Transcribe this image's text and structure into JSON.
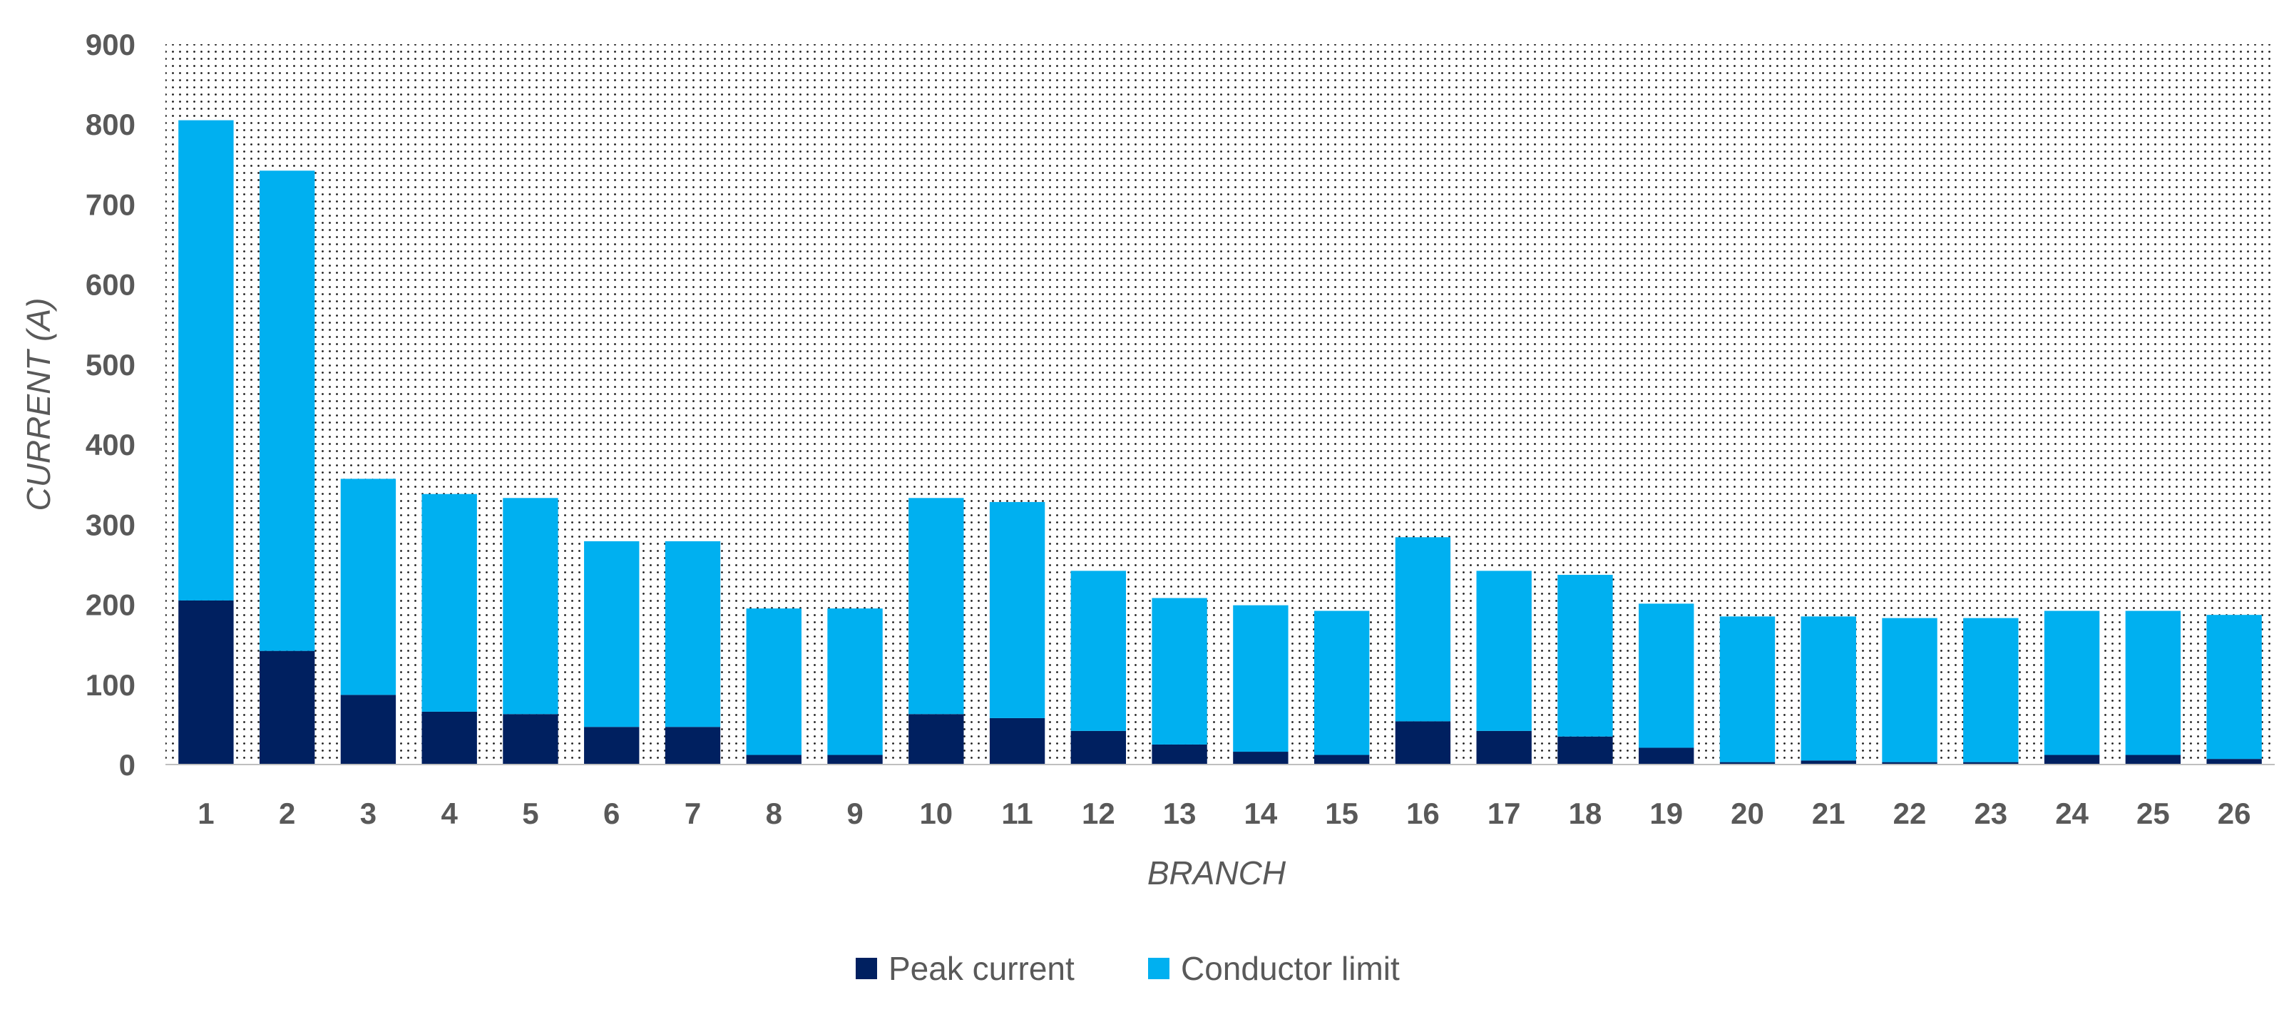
{
  "chart_data": {
    "type": "bar",
    "stacked": true,
    "xlabel": "BRANCH",
    "ylabel": "CURRENT (A)",
    "ylim": [
      0,
      900
    ],
    "yticks": [
      0,
      100,
      200,
      300,
      400,
      500,
      600,
      700,
      800,
      900
    ],
    "grid": false,
    "plot_background": "dotted",
    "legend_position": "bottom",
    "categories": [
      "1",
      "2",
      "3",
      "4",
      "5",
      "6",
      "7",
      "8",
      "9",
      "10",
      "11",
      "12",
      "13",
      "14",
      "15",
      "16",
      "17",
      "18",
      "19",
      "20",
      "21",
      "22",
      "23",
      "24",
      "25",
      "26"
    ],
    "series": [
      {
        "name": "Peak current",
        "color": "#002060",
        "values": [
          205,
          142,
          87,
          66,
          63,
          47,
          47,
          12,
          12,
          63,
          58,
          42,
          25,
          16,
          12,
          54,
          42,
          35,
          21,
          3,
          5,
          3,
          3,
          12,
          12,
          7
        ]
      },
      {
        "name": "Conductor limit",
        "color": "#00B0F0",
        "values": [
          600,
          600,
          270,
          272,
          270,
          232,
          232,
          183,
          183,
          270,
          270,
          200,
          183,
          183,
          180,
          230,
          200,
          202,
          180,
          182,
          180,
          180,
          180,
          180,
          180,
          180
        ]
      }
    ],
    "totals": [
      805,
      742,
      357,
      338,
      333,
      279,
      279,
      195,
      195,
      333,
      328,
      242,
      208,
      199,
      192,
      284,
      242,
      237,
      201,
      185,
      185,
      183,
      183,
      192,
      192,
      187
    ]
  }
}
